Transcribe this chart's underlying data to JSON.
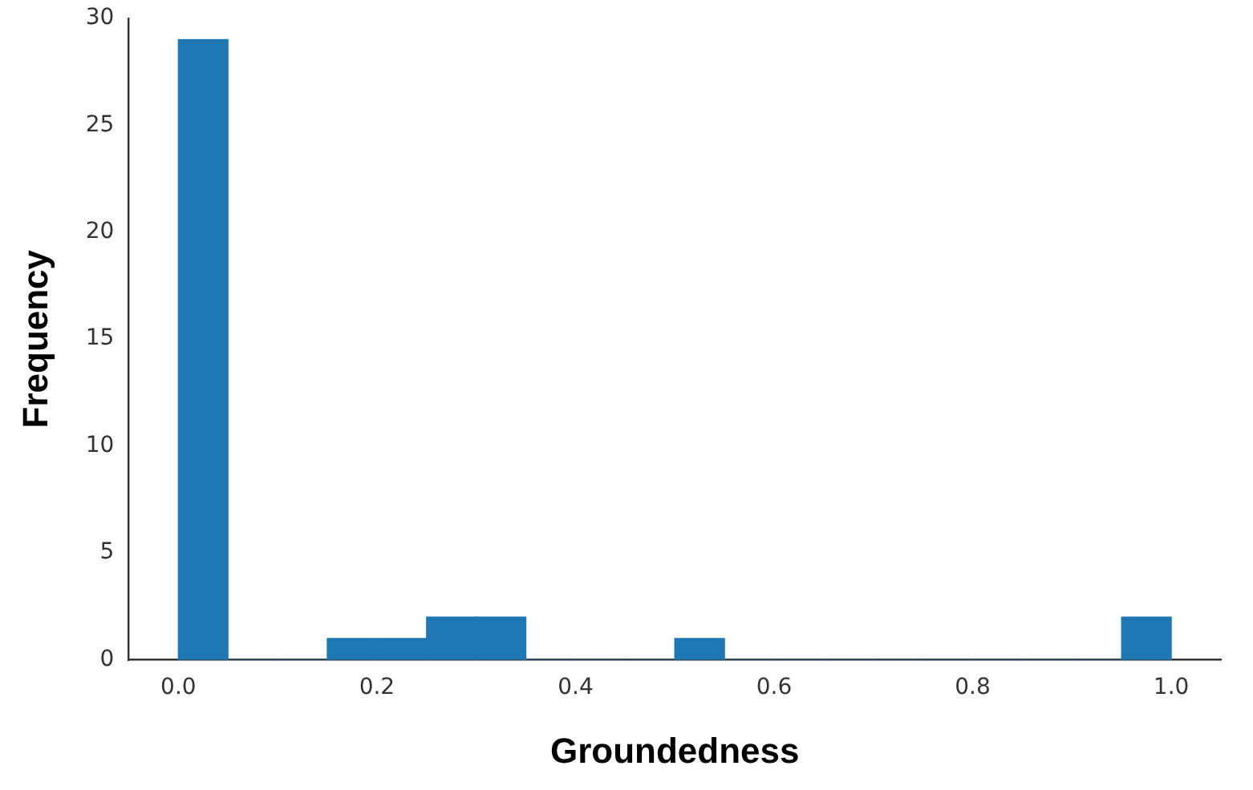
{
  "chart_data": {
    "type": "histogram",
    "xlabel": "Groundedness",
    "ylabel": "Frequency",
    "bins": [
      0,
      0.05,
      0.1,
      0.15,
      0.2,
      0.25,
      0.3,
      0.35,
      0.4,
      0.45,
      0.5,
      0.55,
      0.6,
      0.65,
      0.7,
      0.75,
      0.8,
      0.85,
      0.9,
      0.95,
      1.0
    ],
    "values": [
      29,
      0,
      0,
      1,
      1,
      2,
      2,
      0,
      0,
      0,
      1,
      0,
      0,
      0,
      0,
      0,
      0,
      0,
      0,
      2
    ],
    "color": "#1f77b4",
    "xlim": [
      -0.05,
      1.05
    ],
    "ylim": [
      0,
      30
    ],
    "xticks": [
      {
        "value": 0,
        "label": "0.0"
      },
      {
        "value": 0.2,
        "label": "0.2"
      },
      {
        "value": 0.4,
        "label": "0.4"
      },
      {
        "value": 0.6,
        "label": "0.6"
      },
      {
        "value": 0.8,
        "label": "0.8"
      },
      {
        "value": 1,
        "label": "1.0"
      }
    ],
    "yticks": [
      0,
      5,
      10,
      15,
      20,
      25,
      30
    ],
    "grid": false,
    "legend": false
  }
}
